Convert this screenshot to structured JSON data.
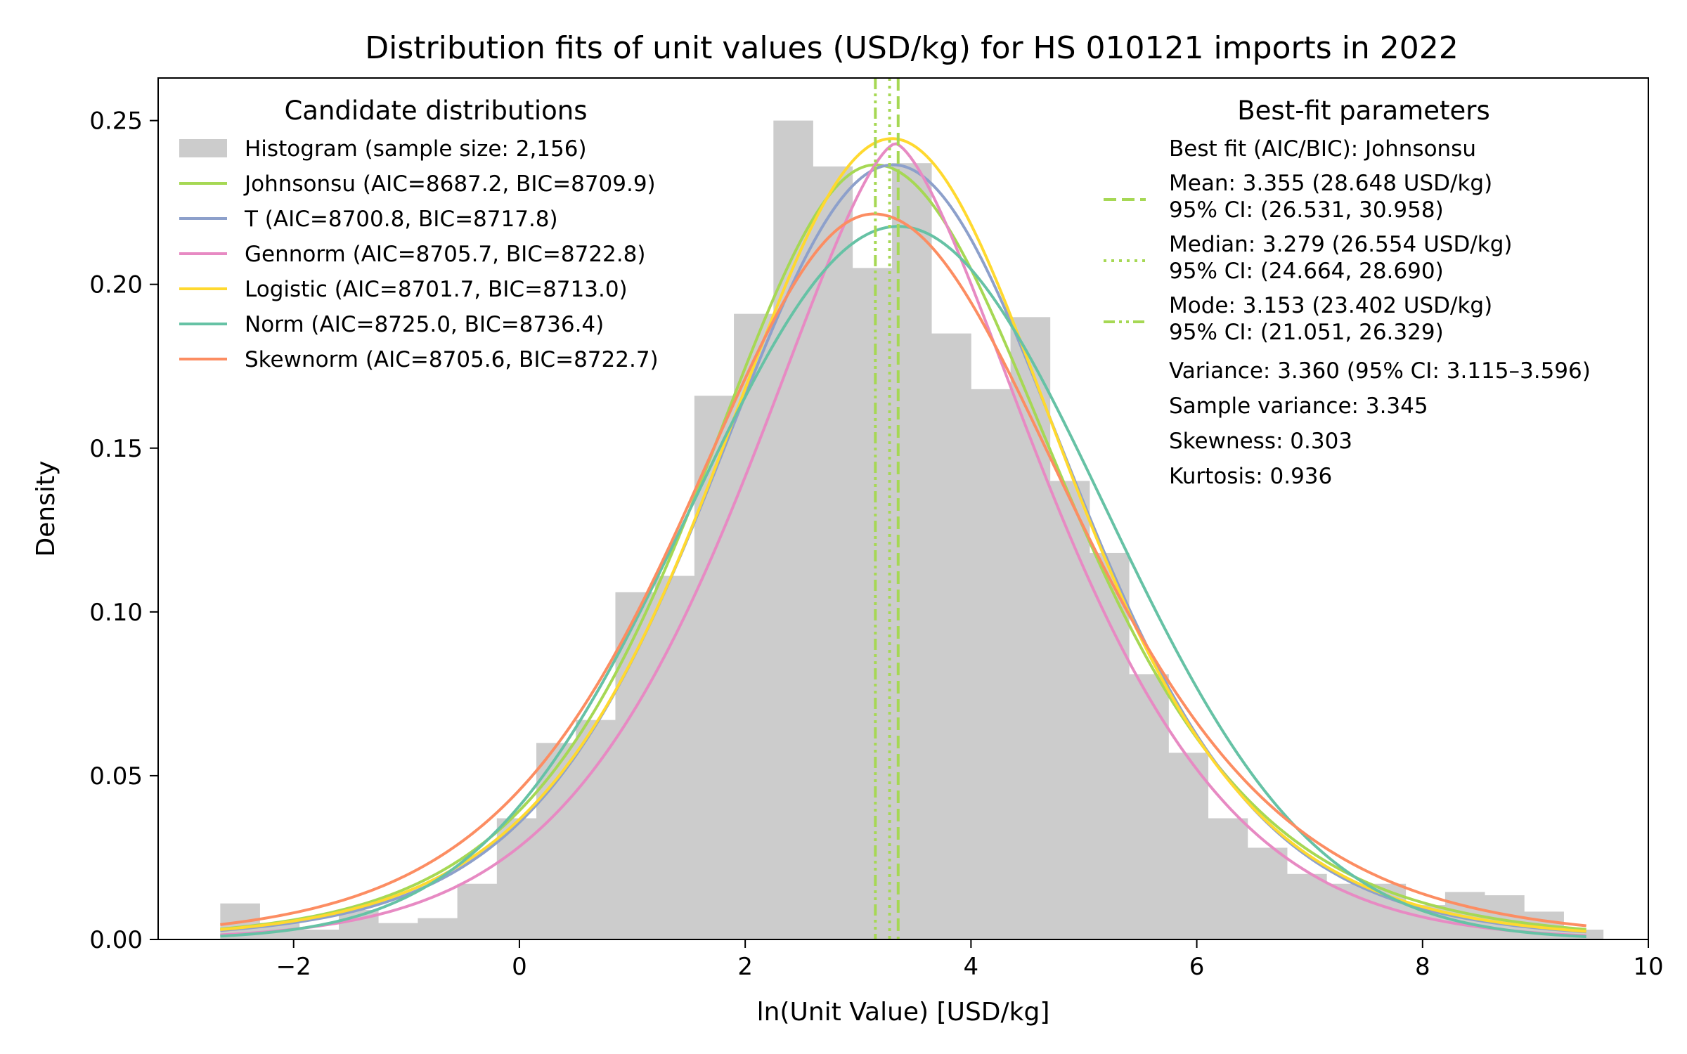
{
  "chart_data": {
    "type": "histogram-with-fits",
    "title": "Distribution fits of unit values (USD/kg) for HS 010121 imports in 2022",
    "xlabel": "ln(Unit Value) [USD/kg]",
    "ylabel": "Density",
    "xlim": [
      -3.2,
      10.0
    ],
    "ylim": [
      0.0,
      0.263
    ],
    "x_ticks": [
      -2,
      0,
      2,
      4,
      6,
      8,
      10
    ],
    "x_tick_labels": [
      "−2",
      "0",
      "2",
      "4",
      "6",
      "8",
      "10"
    ],
    "y_ticks": [
      0.0,
      0.05,
      0.1,
      0.15,
      0.2,
      0.25
    ],
    "y_tick_labels": [
      "0.00",
      "0.05",
      "0.10",
      "0.15",
      "0.20",
      "0.25"
    ],
    "grid": false,
    "histogram": {
      "label": "Histogram (sample size: 2,156)",
      "color": "#cccccc",
      "bin_start": -2.65,
      "bin_width": 0.35,
      "densities": [
        0.011,
        0.005,
        0.003,
        0.009,
        0.005,
        0.0065,
        0.017,
        0.037,
        0.06,
        0.067,
        0.106,
        0.111,
        0.166,
        0.191,
        0.25,
        0.236,
        0.205,
        0.237,
        0.185,
        0.168,
        0.19,
        0.14,
        0.118,
        0.081,
        0.057,
        0.037,
        0.028,
        0.02,
        0.017,
        0.017,
        0.0105,
        0.0145,
        0.0135,
        0.0085,
        0.003
      ]
    },
    "series": [
      {
        "name": "Johnsonsu (AIC=8687.2, BIC=8709.9)",
        "color": "#a6d854",
        "dist": "skewlogistic",
        "mode": 3.153,
        "peak": 0.2365,
        "scale_left": 1.02,
        "scale_right": 1.1
      },
      {
        "name": "T (AIC=8700.8, BIC=8717.8)",
        "color": "#8da0cb",
        "dist": "t",
        "loc": 3.31,
        "scale": 1.62,
        "df": 8,
        "peak": 0.2365
      },
      {
        "name": "Gennorm (AIC=8705.7, BIC=8722.8)",
        "color": "#e78ac3",
        "dist": "gennorm",
        "loc": 3.33,
        "alpha": 2.0,
        "beta": 1.5,
        "peak": 0.243
      },
      {
        "name": "Logistic (AIC=8701.7, BIC=8713.0)",
        "color": "#ffd92f",
        "dist": "logistic",
        "loc": 3.3,
        "scale": 1.03,
        "peak": 0.2445
      },
      {
        "name": "Norm (AIC=8725.0, BIC=8736.4)",
        "color": "#66c2a5",
        "dist": "normal",
        "loc": 3.355,
        "sigma": 1.833,
        "peak": 0.2177
      },
      {
        "name": "Skewnorm (AIC=8705.6, BIC=8722.7)",
        "color": "#fc8d62",
        "dist": "skewlogistic",
        "mode": 3.14,
        "peak": 0.2215,
        "scale_left": 1.1,
        "scale_right": 1.18
      }
    ],
    "vlines": [
      {
        "name": "Mean",
        "x": 3.355,
        "style": "dashed",
        "color": "#a6d854"
      },
      {
        "name": "Median",
        "x": 3.279,
        "style": "dotted",
        "color": "#a6d854"
      },
      {
        "name": "Mode",
        "x": 3.153,
        "style": "dashdot",
        "color": "#a6d854"
      }
    ],
    "legend_left": {
      "title": "Candidate distributions",
      "placement": "upper-left"
    },
    "legend_right": {
      "title": "Best-fit parameters",
      "placement": "upper-right",
      "best_fit": "Best fit (AIC/BIC): Johnsonsu",
      "mean_line1": "Mean: 3.355 (28.648 USD/kg)",
      "mean_line2": "95% CI: (26.531, 30.958)",
      "median_line1": "Median: 3.279 (26.554 USD/kg)",
      "median_line2": "95% CI: (24.664, 28.690)",
      "mode_line1": "Mode: 3.153 (23.402 USD/kg)",
      "mode_line2": "95% CI: (21.051, 26.329)",
      "variance": "Variance: 3.360 (95% CI: 3.115–3.596)",
      "sample_variance": "Sample variance: 3.345",
      "skewness": "Skewness: 0.303",
      "kurtosis": "Kurtosis: 0.936"
    }
  }
}
